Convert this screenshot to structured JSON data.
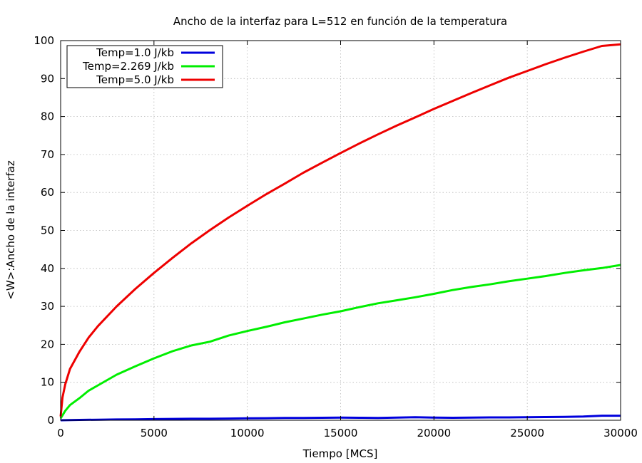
{
  "chart_data": {
    "type": "line",
    "title": "Ancho de la interfaz para L=512 en función de la temperatura",
    "xlabel": "Tiempo [MCS]",
    "ylabel": "<W>:Ancho de la interfaz",
    "xlim": [
      0,
      30000
    ],
    "ylim": [
      0,
      100
    ],
    "xticks": [
      0,
      5000,
      10000,
      15000,
      20000,
      25000,
      30000
    ],
    "yticks": [
      0,
      10,
      20,
      30,
      40,
      50,
      60,
      70,
      80,
      90,
      100
    ],
    "grid": true,
    "legend_position": "top-left",
    "series": [
      {
        "name": "Temp=1.0 J/kb",
        "color": "#0000dd",
        "x": [
          0,
          1000,
          2000,
          3000,
          4000,
          5000,
          6000,
          7000,
          8000,
          9000,
          10000,
          11000,
          12000,
          13000,
          14000,
          15000,
          16000,
          17000,
          18000,
          19000,
          20000,
          21000,
          22000,
          23000,
          24000,
          25000,
          26000,
          27000,
          28000,
          29000,
          30000
        ],
        "values": [
          0.0,
          0.1,
          0.15,
          0.2,
          0.25,
          0.3,
          0.35,
          0.4,
          0.4,
          0.45,
          0.5,
          0.55,
          0.6,
          0.6,
          0.65,
          0.7,
          0.65,
          0.6,
          0.7,
          0.8,
          0.7,
          0.65,
          0.7,
          0.75,
          0.75,
          0.8,
          0.85,
          0.9,
          1.0,
          1.2,
          1.2
        ]
      },
      {
        "name": "Temp=2.269 J/kb",
        "color": "#00ee00",
        "x": [
          0,
          250,
          500,
          1000,
          1500,
          2000,
          3000,
          4000,
          5000,
          6000,
          7000,
          8000,
          9000,
          10000,
          11000,
          12000,
          13000,
          14000,
          15000,
          16000,
          17000,
          18000,
          19000,
          20000,
          21000,
          22000,
          23000,
          24000,
          25000,
          26000,
          27000,
          28000,
          29000,
          30000
        ],
        "values": [
          0.5,
          2.5,
          4.0,
          5.8,
          7.8,
          9.2,
          12.0,
          14.2,
          16.3,
          18.2,
          19.7,
          20.7,
          22.3,
          23.5,
          24.6,
          25.8,
          26.8,
          27.8,
          28.7,
          29.8,
          30.8,
          31.6,
          32.4,
          33.3,
          34.3,
          35.1,
          35.8,
          36.6,
          37.3,
          38.0,
          38.8,
          39.5,
          40.1,
          40.9
        ]
      },
      {
        "name": "Temp=5.0 J/kb",
        "color": "#ee0000",
        "x": [
          0,
          100,
          250,
          500,
          1000,
          1500,
          2000,
          3000,
          4000,
          5000,
          6000,
          7000,
          8000,
          9000,
          10000,
          11000,
          12000,
          13000,
          14000,
          15000,
          16000,
          17000,
          18000,
          19000,
          20000,
          21000,
          22000,
          23000,
          24000,
          25000,
          26000,
          27000,
          28000,
          29000,
          30000
        ],
        "values": [
          1.0,
          6.0,
          9.5,
          13.5,
          18.0,
          21.8,
          24.8,
          30.0,
          34.6,
          38.8,
          42.8,
          46.6,
          50.1,
          53.4,
          56.5,
          59.5,
          62.3,
          65.2,
          67.8,
          70.4,
          72.9,
          75.3,
          77.6,
          79.8,
          82.0,
          84.1,
          86.2,
          88.2,
          90.2,
          92.0,
          93.8,
          95.5,
          97.1,
          98.6,
          99.0
        ]
      }
    ]
  }
}
